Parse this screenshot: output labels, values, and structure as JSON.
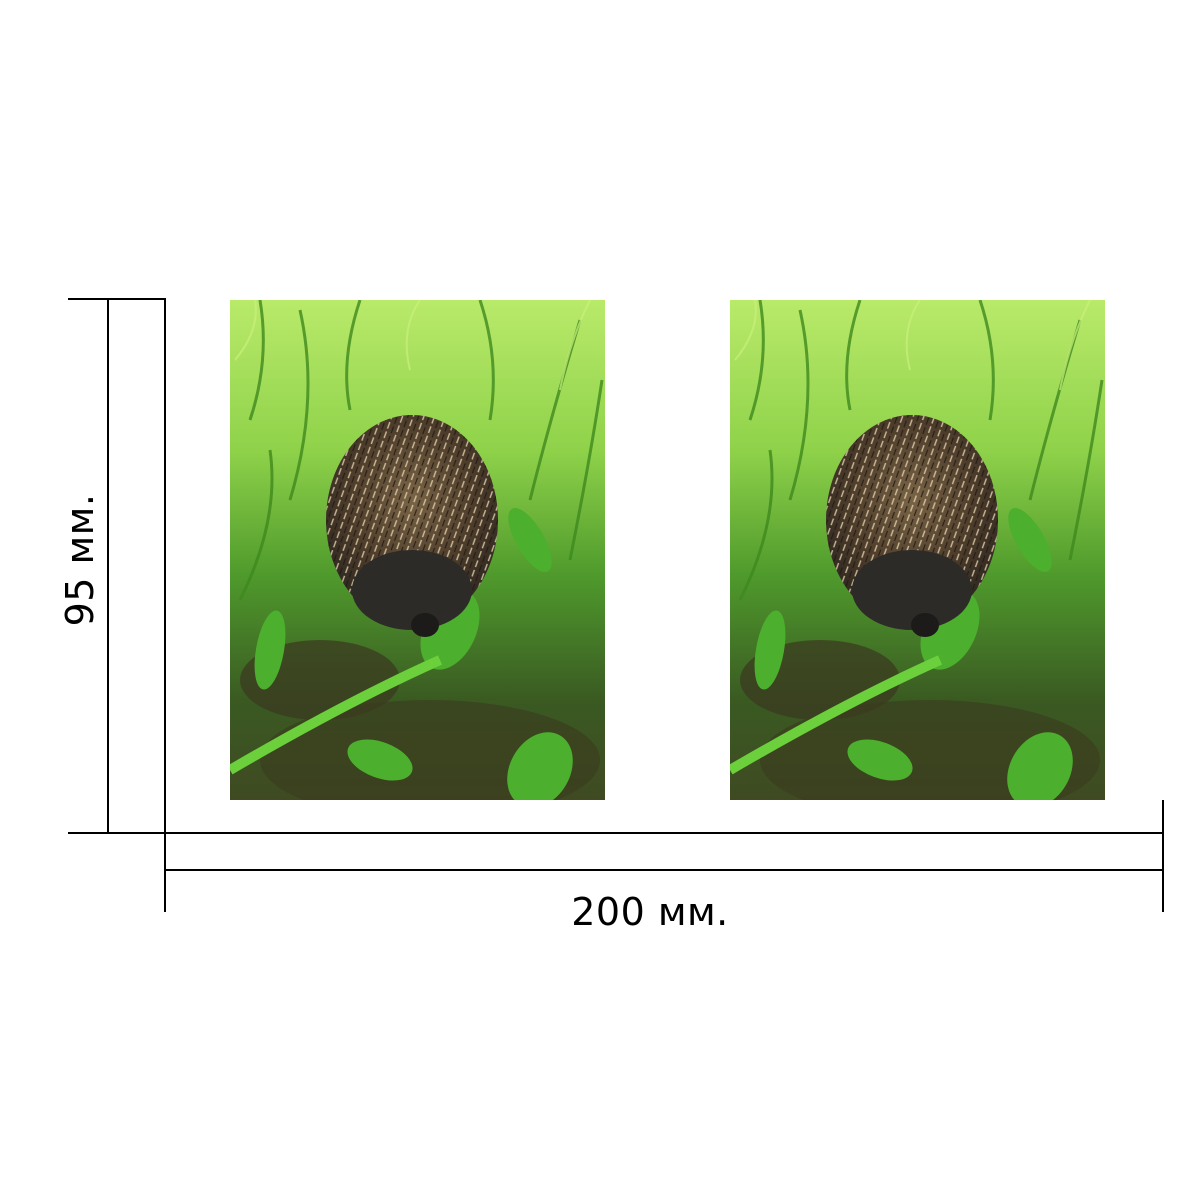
{
  "dimensions": {
    "width_label": "200 мм.",
    "height_label": "95 мм."
  },
  "panels": [
    {
      "content": "hedgehog-in-grass-photo"
    },
    {
      "content": "hedgehog-in-grass-photo"
    }
  ],
  "colors": {
    "line": "#000000",
    "grass_light": "#a8e05a",
    "grass_dark": "#3f7d22",
    "soil": "#4a3a22",
    "hedgehog_spines": "#5a4632",
    "hedgehog_tips": "#d8c6a4",
    "hedgehog_face": "#2e2e2b"
  }
}
